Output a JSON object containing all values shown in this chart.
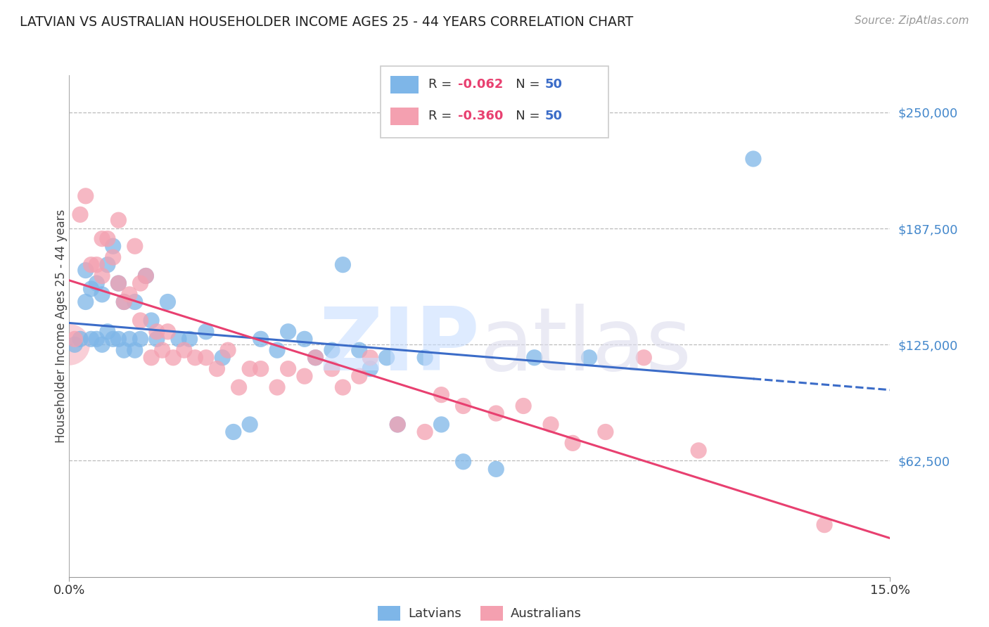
{
  "title": "LATVIAN VS AUSTRALIAN HOUSEHOLDER INCOME AGES 25 - 44 YEARS CORRELATION CHART",
  "source": "Source: ZipAtlas.com",
  "ylabel": "Householder Income Ages 25 - 44 years",
  "xlim": [
    0.0,
    0.15
  ],
  "ylim": [
    0,
    270000
  ],
  "yticks": [
    62500,
    125000,
    187500,
    250000
  ],
  "ytick_labels": [
    "$62,500",
    "$125,000",
    "$187,500",
    "$250,000"
  ],
  "xticks": [
    0.0,
    0.15
  ],
  "xtick_labels": [
    "0.0%",
    "15.0%"
  ],
  "latvian_color": "#7EB6E8",
  "australian_color": "#F4A0B0",
  "latvian_line_color": "#3B6CC8",
  "australian_line_color": "#E84070",
  "latvian_r": "-0.062",
  "latvian_n": "50",
  "australian_r": "-0.360",
  "australian_n": "50",
  "background_color": "#FFFFFF",
  "grid_color": "#BBBBBB",
  "title_color": "#222222",
  "axis_label_color": "#444444",
  "ytick_color": "#4488CC",
  "latvian_x": [
    0.001,
    0.002,
    0.003,
    0.003,
    0.004,
    0.004,
    0.005,
    0.005,
    0.006,
    0.006,
    0.007,
    0.007,
    0.008,
    0.008,
    0.009,
    0.009,
    0.01,
    0.01,
    0.011,
    0.012,
    0.012,
    0.013,
    0.014,
    0.015,
    0.016,
    0.018,
    0.02,
    0.022,
    0.025,
    0.028,
    0.03,
    0.033,
    0.035,
    0.038,
    0.04,
    0.043,
    0.045,
    0.048,
    0.05,
    0.053,
    0.055,
    0.058,
    0.06,
    0.065,
    0.068,
    0.072,
    0.078,
    0.085,
    0.095,
    0.125
  ],
  "latvian_y": [
    125000,
    128000,
    148000,
    165000,
    155000,
    128000,
    158000,
    128000,
    152000,
    125000,
    168000,
    132000,
    178000,
    128000,
    158000,
    128000,
    148000,
    122000,
    128000,
    148000,
    122000,
    128000,
    162000,
    138000,
    128000,
    148000,
    128000,
    128000,
    132000,
    118000,
    78000,
    82000,
    128000,
    122000,
    132000,
    128000,
    118000,
    122000,
    168000,
    122000,
    112000,
    118000,
    82000,
    118000,
    82000,
    62000,
    58000,
    118000,
    118000,
    225000
  ],
  "australian_x": [
    0.001,
    0.002,
    0.003,
    0.004,
    0.005,
    0.006,
    0.006,
    0.007,
    0.008,
    0.009,
    0.009,
    0.01,
    0.011,
    0.012,
    0.013,
    0.013,
    0.014,
    0.015,
    0.016,
    0.017,
    0.018,
    0.019,
    0.021,
    0.023,
    0.025,
    0.027,
    0.029,
    0.031,
    0.033,
    0.035,
    0.038,
    0.04,
    0.043,
    0.045,
    0.048,
    0.05,
    0.053,
    0.055,
    0.06,
    0.065,
    0.068,
    0.072,
    0.078,
    0.083,
    0.088,
    0.092,
    0.098,
    0.105,
    0.115,
    0.138
  ],
  "australian_y": [
    128000,
    195000,
    205000,
    168000,
    168000,
    182000,
    162000,
    182000,
    172000,
    192000,
    158000,
    148000,
    152000,
    178000,
    138000,
    158000,
    162000,
    118000,
    132000,
    122000,
    132000,
    118000,
    122000,
    118000,
    118000,
    112000,
    122000,
    102000,
    112000,
    112000,
    102000,
    112000,
    108000,
    118000,
    112000,
    102000,
    108000,
    118000,
    82000,
    78000,
    98000,
    92000,
    88000,
    92000,
    82000,
    72000,
    78000,
    118000,
    68000,
    28000
  ],
  "watermark_zip_color": "#C8DEFF",
  "watermark_atlas_color": "#DDDDEE"
}
